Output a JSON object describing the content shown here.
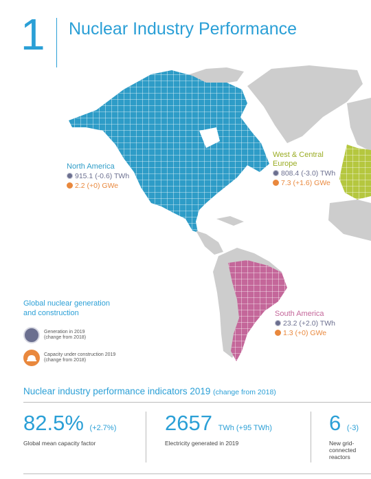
{
  "header": {
    "chapter_number": "1",
    "title": "Nuclear Industry Performance"
  },
  "regions": {
    "north_america": {
      "name": "North America",
      "generation": "915.1 (-0.6) TWh",
      "capacity": "2.2 (+0) GWe"
    },
    "west_central_europe": {
      "name_line1": "West & Central",
      "name_line2": "Europe",
      "generation": "808.4 (-3.0) TWh",
      "capacity": "7.3 (+1.6) GWe"
    },
    "south_america": {
      "name": "South America",
      "generation": "23.2 (+2.0) TWh",
      "capacity": "1.3 (+0) GWe"
    }
  },
  "legend": {
    "title_line1": "Global nuclear generation",
    "title_line2": "and construction",
    "generation_line1": "Generation in 2019",
    "generation_line2": "(change from 2018)",
    "capacity_line1": "Capacity under construction 2019",
    "capacity_line2": "(change from 2018)",
    "generation_icon": "globe-icon",
    "capacity_icon": "hard-hat-icon"
  },
  "indicators": {
    "heading": "Nuclear industry performance indicators 2019",
    "heading_sub": "(change from 2018)",
    "items": [
      {
        "value": "82.5%",
        "change": "(+2.7%)",
        "caption": "Global mean capacity factor"
      },
      {
        "value": "2657",
        "change": "TWh (+95 TWh)",
        "caption": "Electricity generated in 2019"
      },
      {
        "value": "6",
        "change": "(-3)",
        "caption_line1": "New grid-",
        "caption_line2": "connected",
        "caption_line3": "reactors"
      }
    ]
  },
  "colors": {
    "accent": "#2a9fd6",
    "north_america": "#2e9cc7",
    "europe": "#b5c73f",
    "south_america": "#c4679a",
    "land_gray": "#cdcdcd",
    "generation": "#6b6f8f",
    "capacity": "#e9883d"
  }
}
